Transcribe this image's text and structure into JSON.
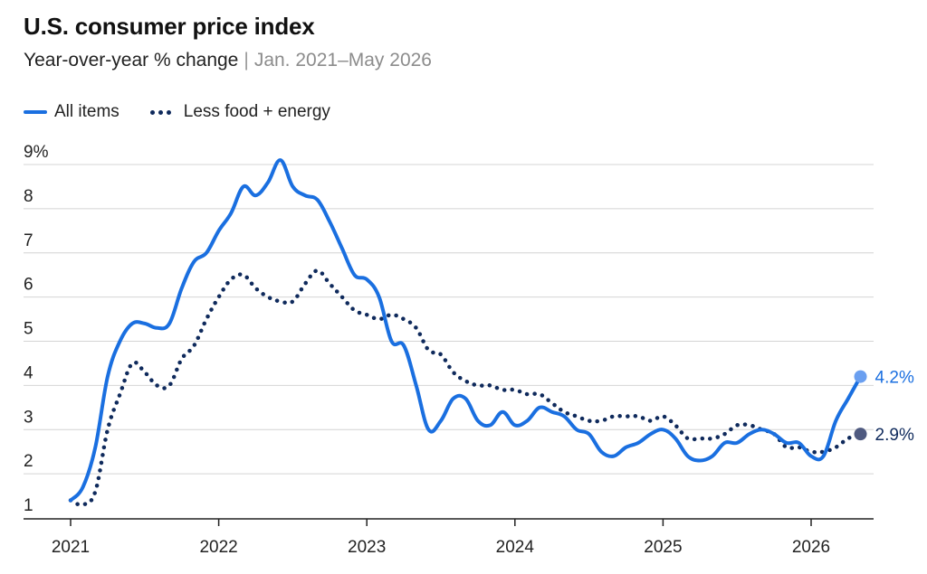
{
  "title": "U.S. consumer price index",
  "subtitle": "Year-over-year % change",
  "subtitle_separator": "|",
  "date_range": "Jan. 2021–May 2026",
  "colors": {
    "all_items": "#1a6fe0",
    "core": "#0f2a5c",
    "all_items_marker": "#6a9ff0",
    "core_marker": "#4f5a80",
    "grid": "#d4d4d4",
    "axis": "#222222"
  },
  "legend": [
    {
      "label": "All items",
      "style": "solid"
    },
    {
      "label": "Less food + energy",
      "style": "dotted"
    }
  ],
  "chart_data": {
    "type": "line",
    "title": "U.S. consumer price index",
    "subtitle": "Year-over-year % change",
    "xlabel": "",
    "ylabel": "",
    "x_range": [
      "2021-01",
      "2026-05"
    ],
    "ylim": [
      1,
      9
    ],
    "y_ticks": [
      1,
      2,
      3,
      4,
      5,
      6,
      7,
      8,
      9
    ],
    "y_tick_labels": [
      "1",
      "2",
      "3",
      "4",
      "5",
      "6",
      "7",
      "8",
      "9%"
    ],
    "x_ticks": [
      "2021-01",
      "2022-01",
      "2023-01",
      "2024-01",
      "2025-01",
      "2026-01"
    ],
    "x_tick_labels": [
      "2021",
      "2022",
      "2023",
      "2024",
      "2025",
      "2026"
    ],
    "grid": "horizontal",
    "legend_position": "top-left",
    "end_labels": [
      "4.2%",
      "2.9%"
    ],
    "x": [
      "2021-01",
      "2021-02",
      "2021-03",
      "2021-04",
      "2021-05",
      "2021-06",
      "2021-07",
      "2021-08",
      "2021-09",
      "2021-10",
      "2021-11",
      "2021-12",
      "2022-01",
      "2022-02",
      "2022-03",
      "2022-04",
      "2022-05",
      "2022-06",
      "2022-07",
      "2022-08",
      "2022-09",
      "2022-10",
      "2022-11",
      "2022-12",
      "2023-01",
      "2023-02",
      "2023-03",
      "2023-04",
      "2023-05",
      "2023-06",
      "2023-07",
      "2023-08",
      "2023-09",
      "2023-10",
      "2023-11",
      "2023-12",
      "2024-01",
      "2024-02",
      "2024-03",
      "2024-04",
      "2024-05",
      "2024-06",
      "2024-07",
      "2024-08",
      "2024-09",
      "2024-10",
      "2024-11",
      "2024-12",
      "2025-01",
      "2025-02",
      "2025-03",
      "2025-04",
      "2025-05",
      "2025-06",
      "2025-07",
      "2025-08",
      "2025-09",
      "2025-10",
      "2025-11",
      "2025-12",
      "2026-01",
      "2026-02",
      "2026-03",
      "2026-04",
      "2026-05"
    ],
    "series": [
      {
        "name": "All items",
        "values": [
          1.4,
          1.7,
          2.6,
          4.2,
          5.0,
          5.4,
          5.4,
          5.3,
          5.4,
          6.2,
          6.8,
          7.0,
          7.5,
          7.9,
          8.5,
          8.3,
          8.6,
          9.1,
          8.5,
          8.3,
          8.2,
          7.7,
          7.1,
          6.5,
          6.4,
          6.0,
          5.0,
          4.9,
          4.0,
          3.0,
          3.2,
          3.7,
          3.7,
          3.2,
          3.1,
          3.4,
          3.1,
          3.2,
          3.5,
          3.4,
          3.3,
          3.0,
          2.9,
          2.5,
          2.4,
          2.6,
          2.7,
          2.9,
          3.0,
          2.8,
          2.4,
          2.3,
          2.4,
          2.7,
          2.7,
          2.9,
          3.0,
          2.9,
          2.7,
          2.7,
          2.4,
          2.4,
          3.2,
          3.7,
          4.2
        ]
      },
      {
        "name": "Less food + energy",
        "values": [
          1.4,
          1.3,
          1.6,
          3.0,
          3.8,
          4.5,
          4.3,
          4.0,
          4.0,
          4.6,
          4.9,
          5.5,
          6.0,
          6.4,
          6.5,
          6.2,
          6.0,
          5.9,
          5.9,
          6.3,
          6.6,
          6.3,
          6.0,
          5.7,
          5.6,
          5.5,
          5.6,
          5.5,
          5.3,
          4.8,
          4.7,
          4.3,
          4.1,
          4.0,
          4.0,
          3.9,
          3.9,
          3.8,
          3.8,
          3.6,
          3.4,
          3.3,
          3.2,
          3.2,
          3.3,
          3.3,
          3.3,
          3.2,
          3.3,
          3.1,
          2.8,
          2.8,
          2.8,
          2.9,
          3.1,
          3.1,
          3.0,
          2.9,
          2.6,
          2.6,
          2.5,
          2.5,
          2.6,
          2.8,
          2.9
        ]
      }
    ]
  }
}
